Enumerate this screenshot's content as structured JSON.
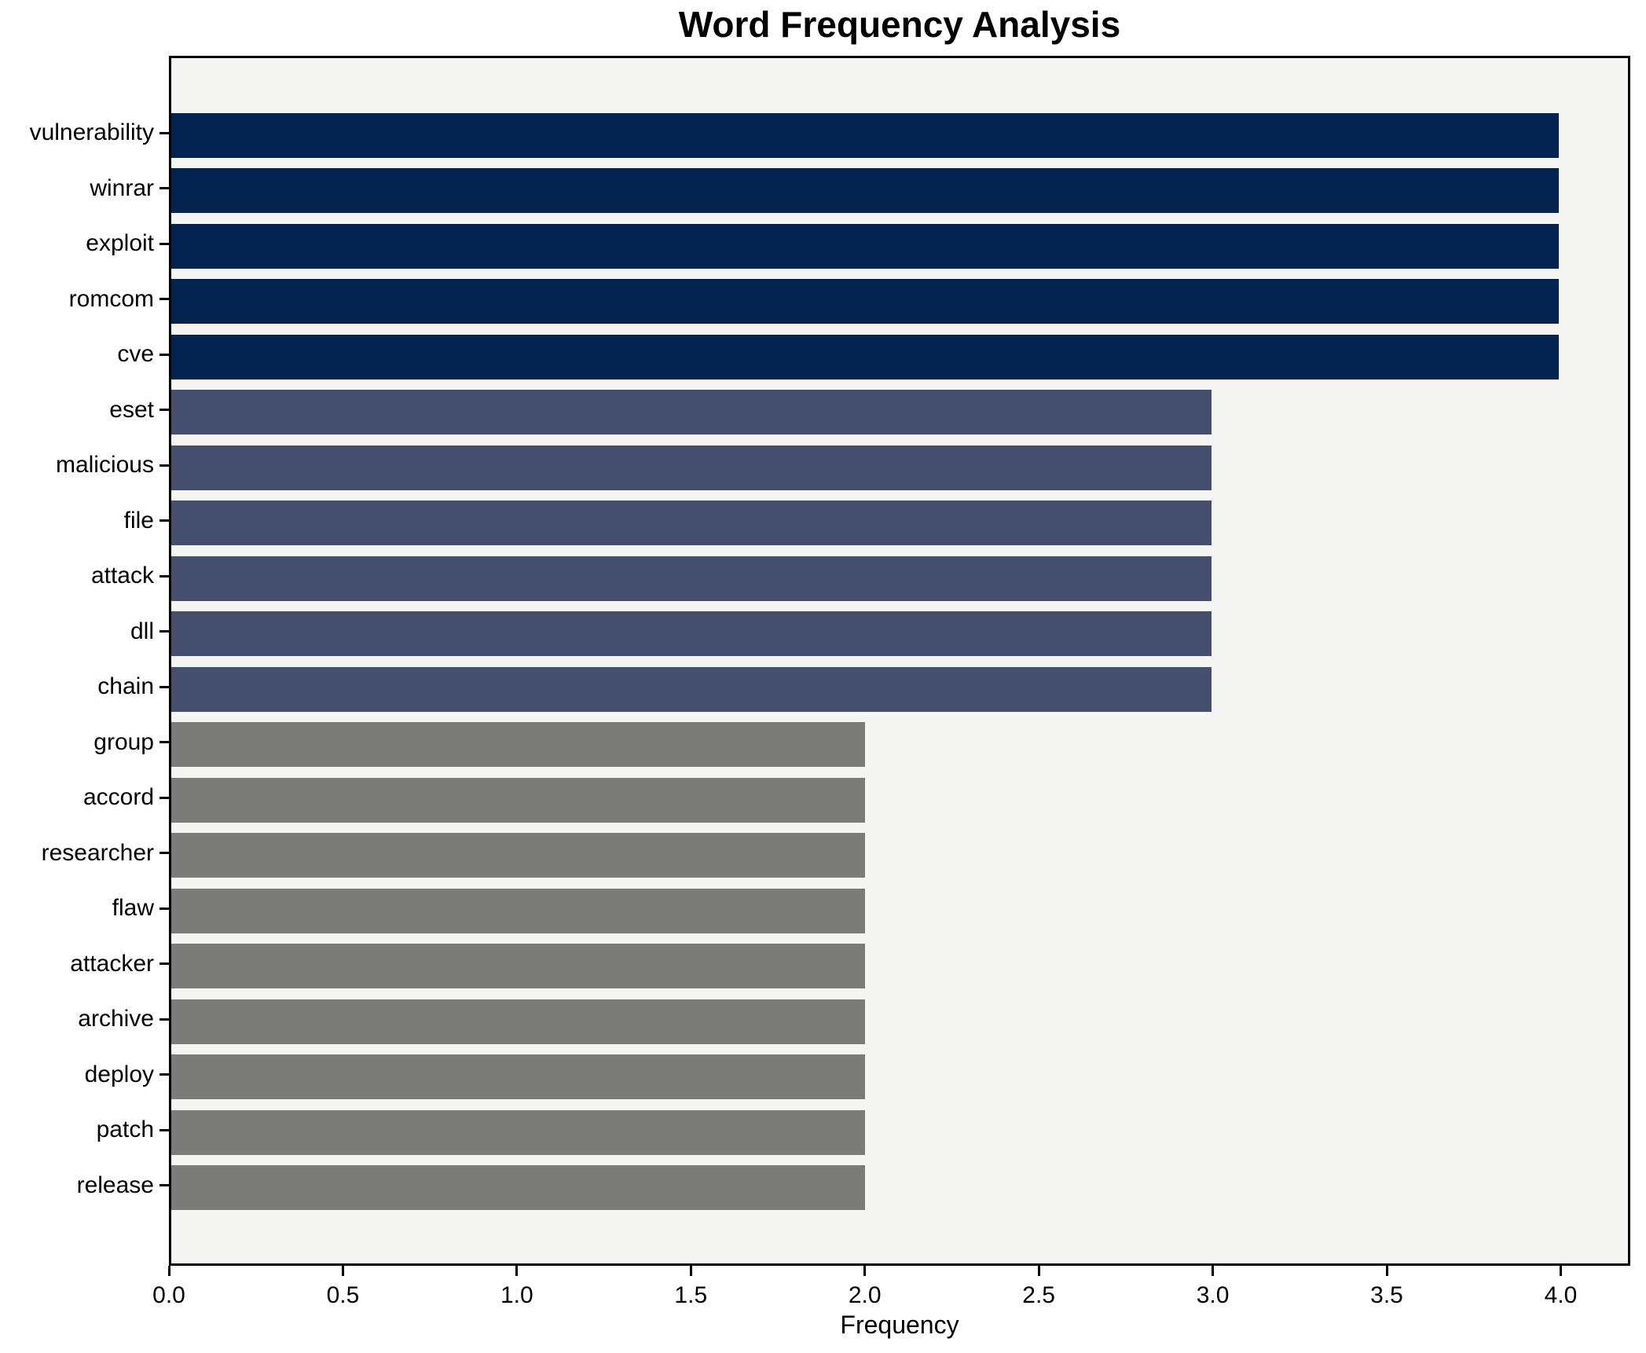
{
  "chart_data": {
    "type": "bar",
    "orientation": "horizontal",
    "title": "Word Frequency Analysis",
    "xlabel": "Frequency",
    "ylabel": "",
    "categories": [
      "vulnerability",
      "winrar",
      "exploit",
      "romcom",
      "cve",
      "eset",
      "malicious",
      "file",
      "attack",
      "dll",
      "chain",
      "group",
      "accord",
      "researcher",
      "flaw",
      "attacker",
      "archive",
      "deploy",
      "patch",
      "release"
    ],
    "values": [
      4,
      4,
      4,
      4,
      4,
      3,
      3,
      3,
      3,
      3,
      3,
      2,
      2,
      2,
      2,
      2,
      2,
      2,
      2,
      2
    ],
    "xlim": [
      0,
      4.2
    ],
    "xticks": [
      0.0,
      0.5,
      1.0,
      1.5,
      2.0,
      2.5,
      3.0,
      3.5,
      4.0
    ],
    "xtick_labels": [
      "0.0",
      "0.5",
      "1.0",
      "1.5",
      "2.0",
      "2.5",
      "3.0",
      "3.5",
      "4.0"
    ],
    "grid": false,
    "legend": null,
    "palette_by_value": {
      "4": "#04234e",
      "3": "#45506e",
      "2": "#7b7b78"
    },
    "plot_background": "#f5f5f3",
    "figure_background": "#ffffff",
    "spine_color": "#000000",
    "text_color": "#000000"
  }
}
